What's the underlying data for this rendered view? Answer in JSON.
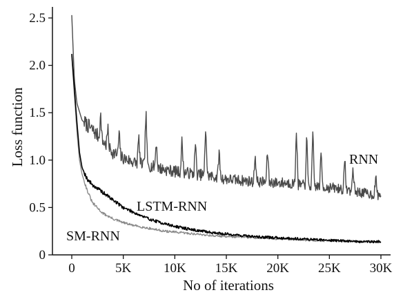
{
  "chart_data": {
    "type": "line",
    "xlabel": "No of iterations",
    "ylabel": "Loss function",
    "xlim": [
      0,
      30000
    ],
    "ylim": [
      0,
      2.6
    ],
    "x_ticks": [
      0,
      5000,
      10000,
      15000,
      20000,
      25000,
      30000
    ],
    "x_tick_labels": [
      "0",
      "5K",
      "10K",
      "15K",
      "20K",
      "25K",
      "30K"
    ],
    "y_ticks": [
      0,
      0.5,
      1.0,
      1.5,
      2.0,
      2.5
    ],
    "y_tick_labels": [
      "0",
      "0.5",
      "1.0",
      "1.5",
      "2.0",
      "2.5"
    ],
    "grid": false,
    "series": [
      {
        "name": "RNN",
        "color": "#4a4a4a",
        "x": [
          0,
          250,
          500,
          1000,
          1500,
          2000,
          3000,
          4000,
          5000,
          6000,
          7000,
          8000,
          9000,
          10000,
          11000,
          12000,
          13000,
          14000,
          15000,
          16000,
          17000,
          18000,
          19000,
          20000,
          21000,
          22000,
          23000,
          24000,
          25000,
          26000,
          27000,
          28000,
          29000,
          30000
        ],
        "values": [
          2.53,
          1.85,
          1.6,
          1.42,
          1.37,
          1.32,
          1.2,
          1.08,
          1.02,
          0.98,
          0.95,
          0.93,
          0.9,
          0.88,
          0.87,
          0.85,
          0.84,
          0.82,
          0.8,
          0.79,
          0.78,
          0.77,
          0.77,
          0.76,
          0.76,
          0.74,
          0.73,
          0.72,
          0.71,
          0.7,
          0.68,
          0.66,
          0.64,
          0.63
        ],
        "spikes": [
          {
            "x": 2800,
            "value": 1.48
          },
          {
            "x": 3500,
            "value": 1.33
          },
          {
            "x": 4600,
            "value": 1.28
          },
          {
            "x": 6500,
            "value": 1.25
          },
          {
            "x": 7200,
            "value": 1.52
          },
          {
            "x": 8200,
            "value": 1.2
          },
          {
            "x": 10700,
            "value": 1.22
          },
          {
            "x": 12000,
            "value": 1.18
          },
          {
            "x": 13000,
            "value": 1.38
          },
          {
            "x": 14300,
            "value": 1.1
          },
          {
            "x": 17800,
            "value": 1.08
          },
          {
            "x": 19000,
            "value": 1.12
          },
          {
            "x": 21800,
            "value": 1.34
          },
          {
            "x": 22800,
            "value": 1.25
          },
          {
            "x": 23400,
            "value": 1.28
          },
          {
            "x": 24200,
            "value": 1.08
          },
          {
            "x": 26500,
            "value": 1.0
          },
          {
            "x": 27300,
            "value": 0.92
          },
          {
            "x": 29500,
            "value": 0.82
          }
        ]
      },
      {
        "name": "LSTM-RNN",
        "color": "#000000",
        "x": [
          0,
          250,
          500,
          750,
          1000,
          1500,
          2000,
          3000,
          4000,
          5000,
          6000,
          7000,
          8000,
          9000,
          10000,
          12000,
          14000,
          16000,
          18000,
          20000,
          22000,
          24000,
          26000,
          28000,
          30000
        ],
        "values": [
          2.12,
          1.75,
          1.4,
          1.08,
          0.92,
          0.8,
          0.74,
          0.66,
          0.58,
          0.5,
          0.45,
          0.4,
          0.36,
          0.33,
          0.3,
          0.26,
          0.23,
          0.21,
          0.19,
          0.18,
          0.17,
          0.16,
          0.15,
          0.14,
          0.14
        ]
      },
      {
        "name": "SM-RNN",
        "color": "#8a8a8a",
        "x": [
          0,
          250,
          500,
          750,
          1000,
          1500,
          2000,
          3000,
          4000,
          5000,
          6000,
          7000,
          8000,
          9000,
          10000,
          12000,
          14000,
          16000,
          18000,
          20000,
          22000,
          24000,
          26000,
          28000,
          30000
        ],
        "values": [
          2.1,
          1.7,
          1.3,
          1.0,
          0.85,
          0.68,
          0.55,
          0.44,
          0.38,
          0.34,
          0.31,
          0.29,
          0.27,
          0.25,
          0.24,
          0.22,
          0.2,
          0.19,
          0.18,
          0.17,
          0.16,
          0.15,
          0.15,
          0.14,
          0.14
        ]
      }
    ]
  }
}
